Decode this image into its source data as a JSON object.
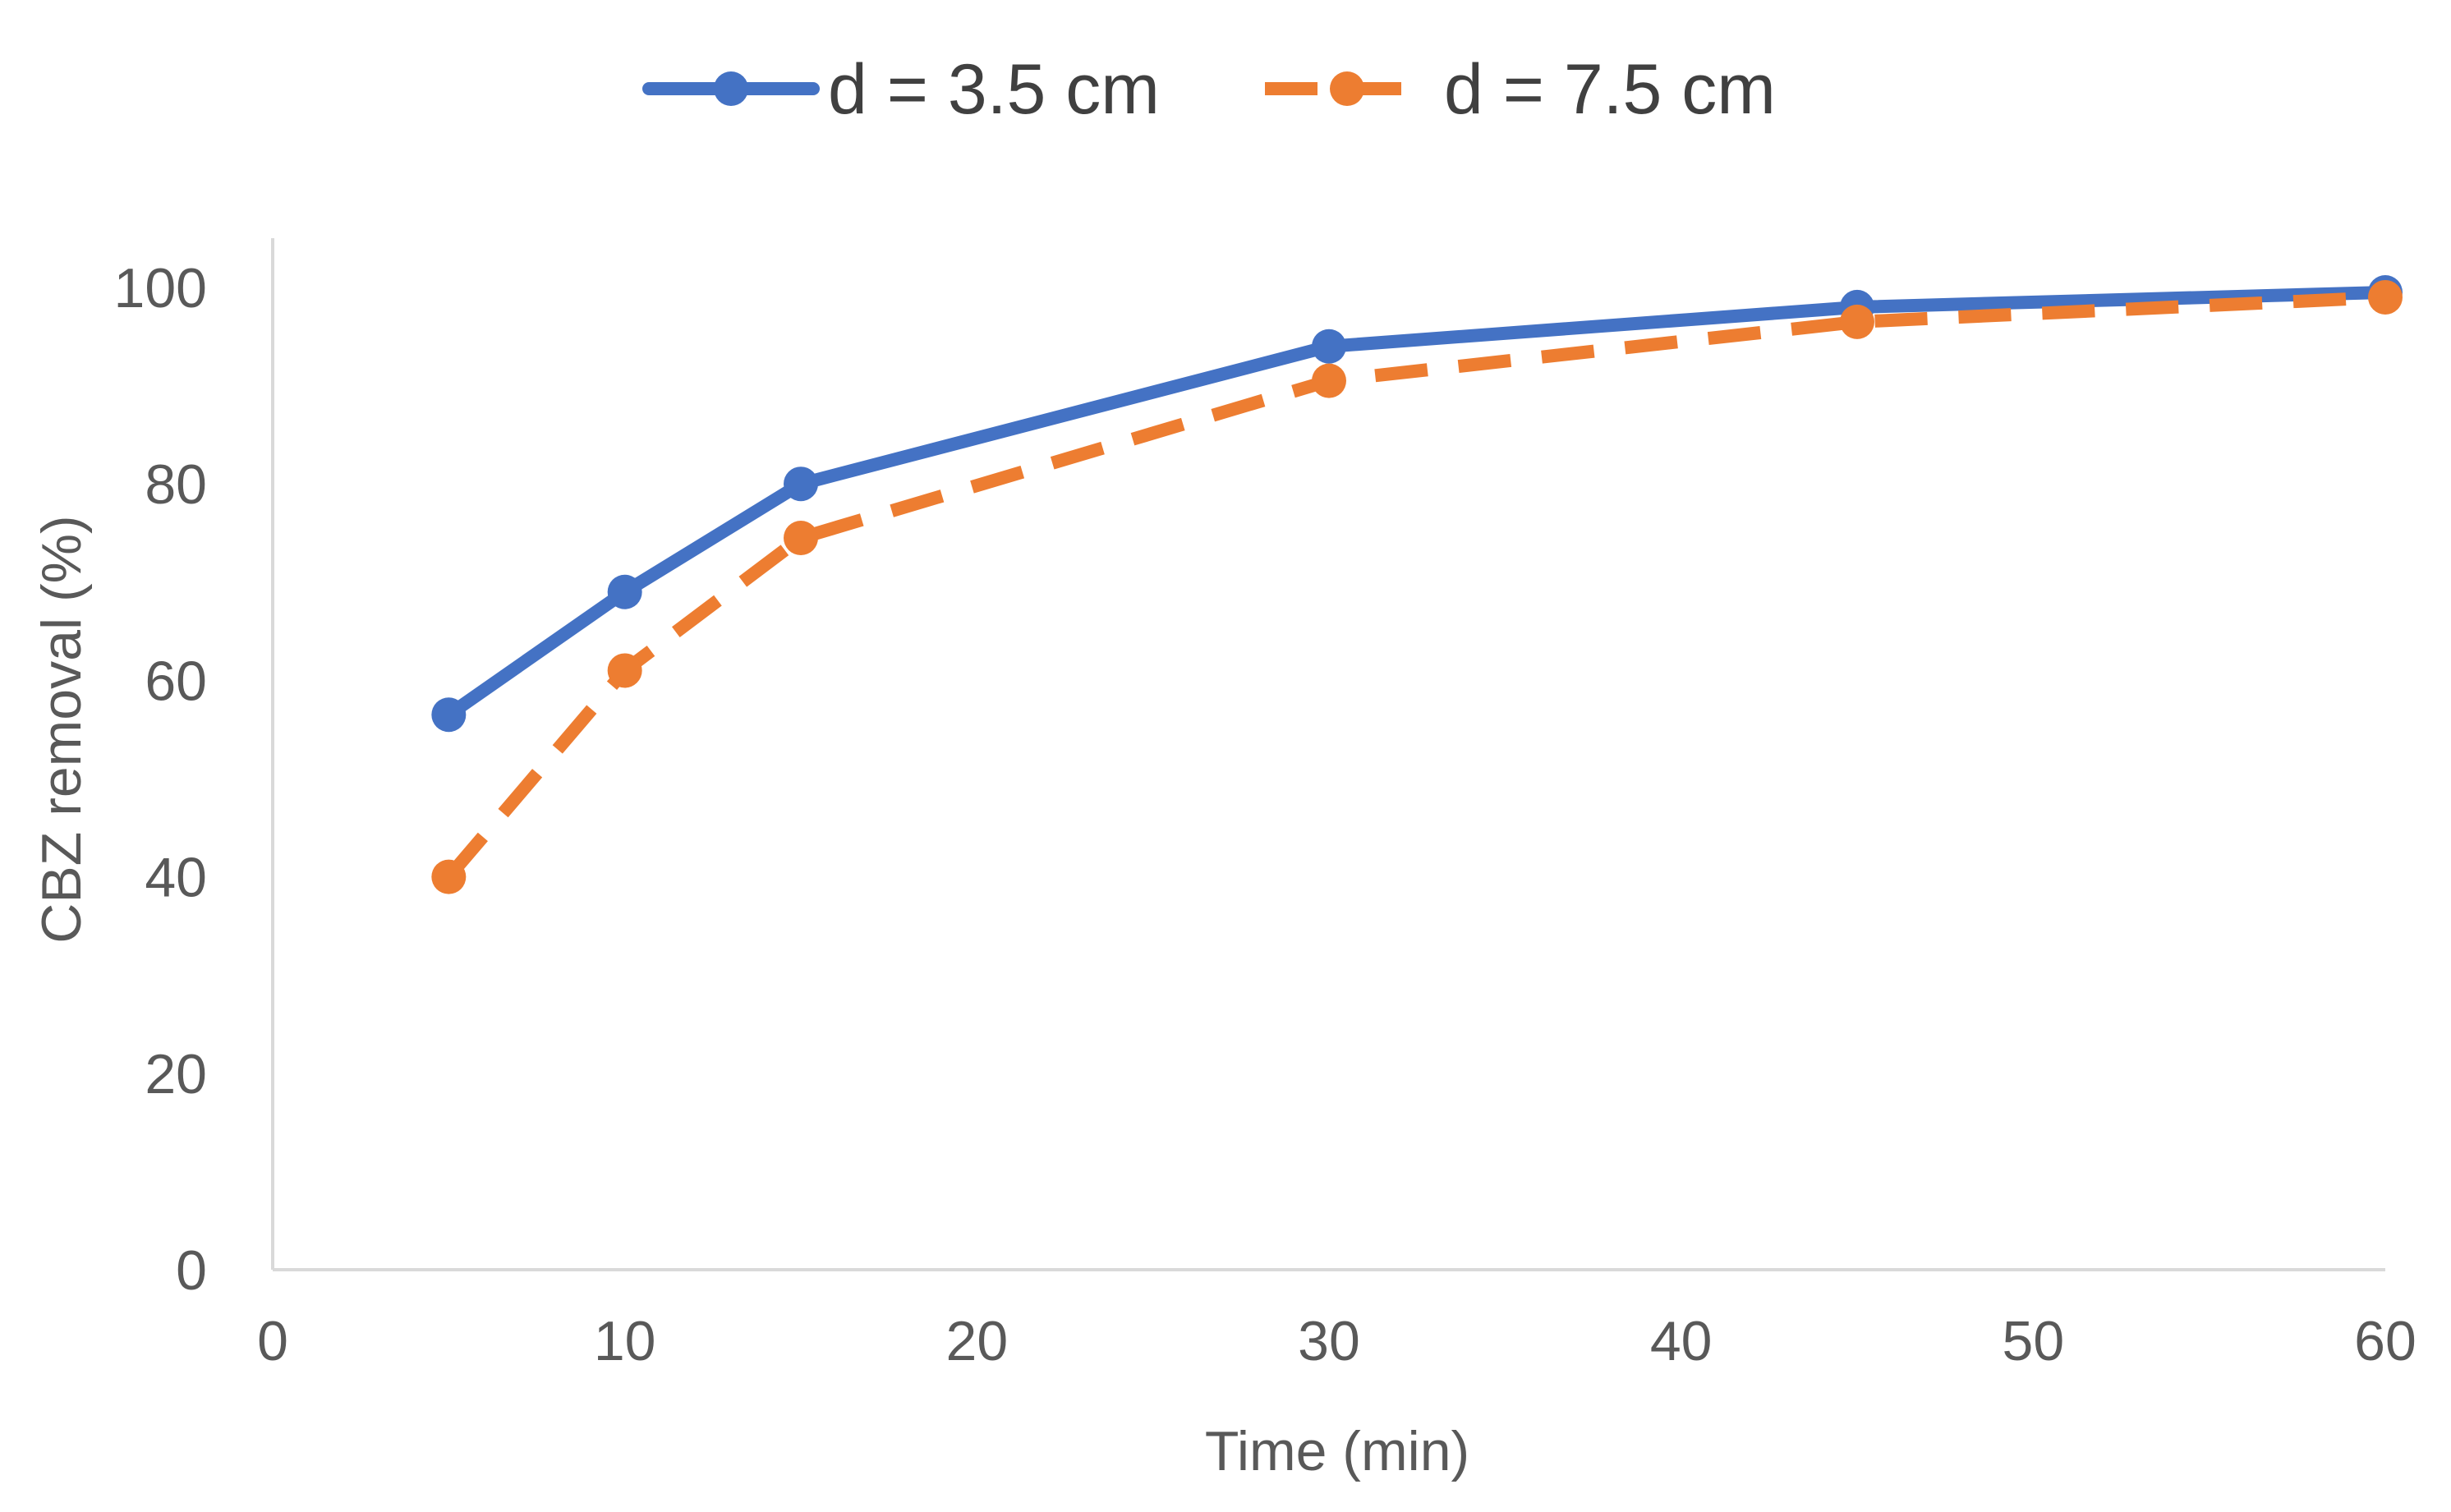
{
  "chart_data": {
    "type": "line",
    "title": "",
    "xlabel": "Time (min)",
    "ylabel": "CBZ removal (%)",
    "xlim": [
      0,
      60
    ],
    "ylim": [
      0,
      100
    ],
    "xticks": [
      0,
      10,
      20,
      30,
      40,
      50,
      60
    ],
    "yticks": [
      0,
      20,
      40,
      60,
      80,
      100
    ],
    "x_tick_labels": [
      "0",
      "10",
      "20",
      "30",
      "40",
      "50",
      "60"
    ],
    "y_tick_labels": [
      "0",
      "20",
      "40",
      "60",
      "80",
      "100"
    ],
    "grid": false,
    "legend_position": "top-center",
    "series": [
      {
        "name": "d = 3.5 cm",
        "color": "#4472C4",
        "line_style": "solid",
        "marker": "circle",
        "x": [
          5,
          10,
          15,
          30,
          45,
          60
        ],
        "y": [
          56.5,
          69,
          80,
          94,
          98,
          99.5
        ]
      },
      {
        "name": "d = 7.5 cm",
        "color": "#ED7D31",
        "line_style": "dashed",
        "marker": "circle",
        "x": [
          5,
          10,
          15,
          30,
          45,
          60
        ],
        "y": [
          40,
          61,
          74.5,
          90.5,
          96.5,
          99
        ]
      }
    ]
  },
  "colors": {
    "axis": "#d9d9d9",
    "text": "#595959",
    "background": "#ffffff"
  }
}
